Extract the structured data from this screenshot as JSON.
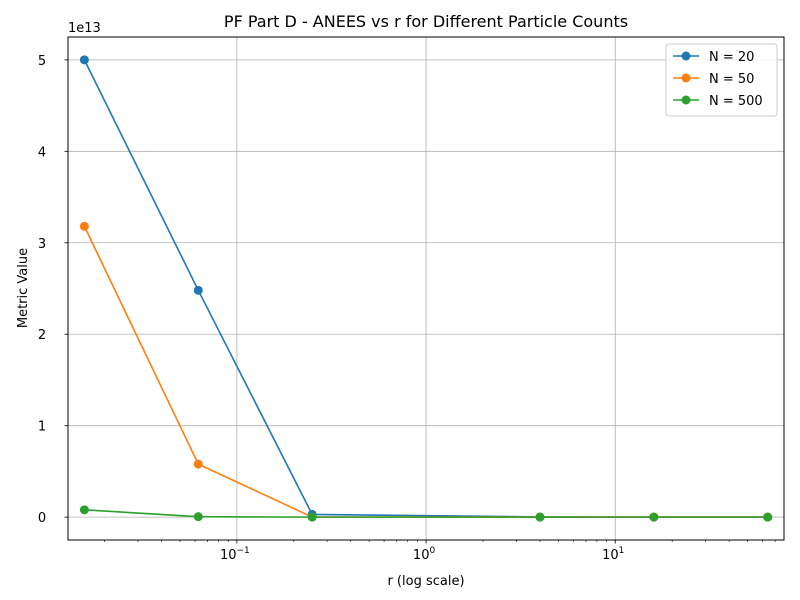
{
  "chart_data": {
    "type": "line",
    "title": "PF Part D - ANEES vs r for Different Particle Counts",
    "xlabel": "r (log scale)",
    "ylabel": "Metric Value",
    "x_scale": "log",
    "y_offset_label": "1e13",
    "y_scale_factor": 10000000000000.0,
    "x": [
      0.015625,
      0.0625,
      0.25,
      4,
      16,
      64
    ],
    "xlim": [
      0.0128,
      78
    ],
    "ylim": [
      -2500000000000.0,
      52500000000000.0
    ],
    "x_ticks": [
      {
        "value": 0.1,
        "base": "10",
        "exp": "−1"
      },
      {
        "value": 1,
        "base": "10",
        "exp": "0"
      },
      {
        "value": 10,
        "base": "10",
        "exp": "1"
      }
    ],
    "y_ticks": [
      0,
      10000000000000.0,
      20000000000000.0,
      30000000000000.0,
      40000000000000.0,
      50000000000000.0
    ],
    "y_tick_labels": [
      "0",
      "1",
      "2",
      "3",
      "4",
      "5"
    ],
    "grid": true,
    "legend_position": "top-right",
    "series": [
      {
        "name": "N = 20",
        "color": "#1f77b4",
        "values": [
          50000000000000.0,
          24800000000000.0,
          300000000000.0,
          20000000000.0,
          10000000000.0,
          10000000000.0
        ]
      },
      {
        "name": "N = 50",
        "color": "#ff7f0e",
        "values": [
          31800000000000.0,
          5800000000000.0,
          10000000000.0,
          5000000000.0,
          5000000000.0,
          5000000000.0
        ]
      },
      {
        "name": "N = 500",
        "color": "#2ca02c",
        "values": [
          800000000000.0,
          50000000000.0,
          1000000000.0,
          1000000000.0,
          1000000000.0,
          1000000000.0
        ]
      }
    ]
  }
}
